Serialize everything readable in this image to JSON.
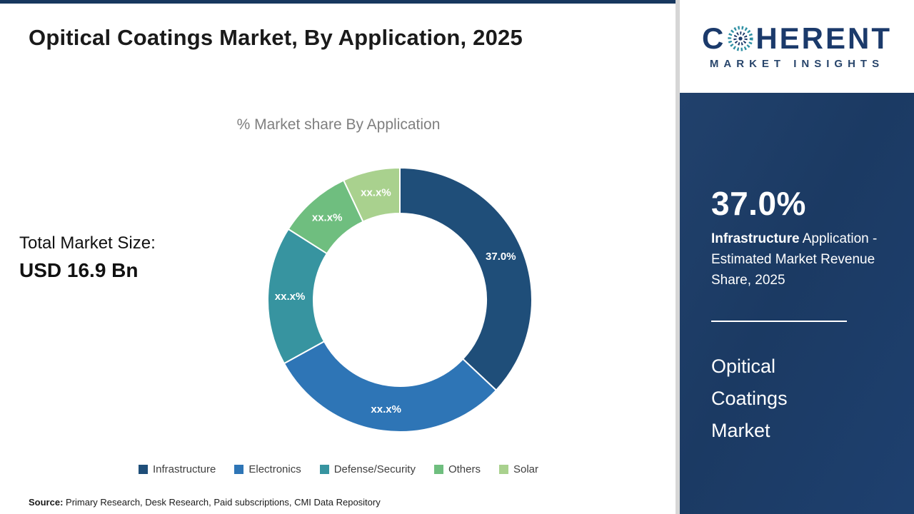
{
  "header": {
    "title": "Opitical Coatings Market, By Application, 2025"
  },
  "chart": {
    "subtitle": "% Market share By Application"
  },
  "market_size": {
    "label": "Total Market Size:",
    "value": "USD 16.9 Bn"
  },
  "source": {
    "label": "Source:",
    "text": " Primary Research, Desk Research, Paid subscriptions, CMI Data Repository"
  },
  "logo": {
    "line1_pre": "C",
    "line1_post": "HERENT",
    "line2": "MARKET INSIGHTS"
  },
  "panel": {
    "bg_color": "#1b3a63",
    "stat_value": "37.0%",
    "stat_bold": "Infrastructure",
    "stat_rest": " Application - Estimated Market Revenue Share, 2025",
    "market_name": "Opitical Coatings Market"
  },
  "chart_data": {
    "type": "pie",
    "subtype": "donut",
    "title": "% Market share By Application",
    "start_angle_deg": 0,
    "direction": "clockwise",
    "legend_position": "bottom",
    "series": [
      {
        "name": "Infrastructure",
        "value": 37.0,
        "label": "37.0%",
        "color": "#1f4e79"
      },
      {
        "name": "Electronics",
        "value": 30.0,
        "label": "xx.x%",
        "color": "#2e75b6"
      },
      {
        "name": "Defense/Security",
        "value": 17.0,
        "label": "xx.x%",
        "color": "#3794a0"
      },
      {
        "name": "Others",
        "value": 9.0,
        "label": "xx.x%",
        "color": "#6fbe7f"
      },
      {
        "name": "Solar",
        "value": 7.0,
        "label": "xx.x%",
        "color": "#a9d18e"
      }
    ]
  }
}
